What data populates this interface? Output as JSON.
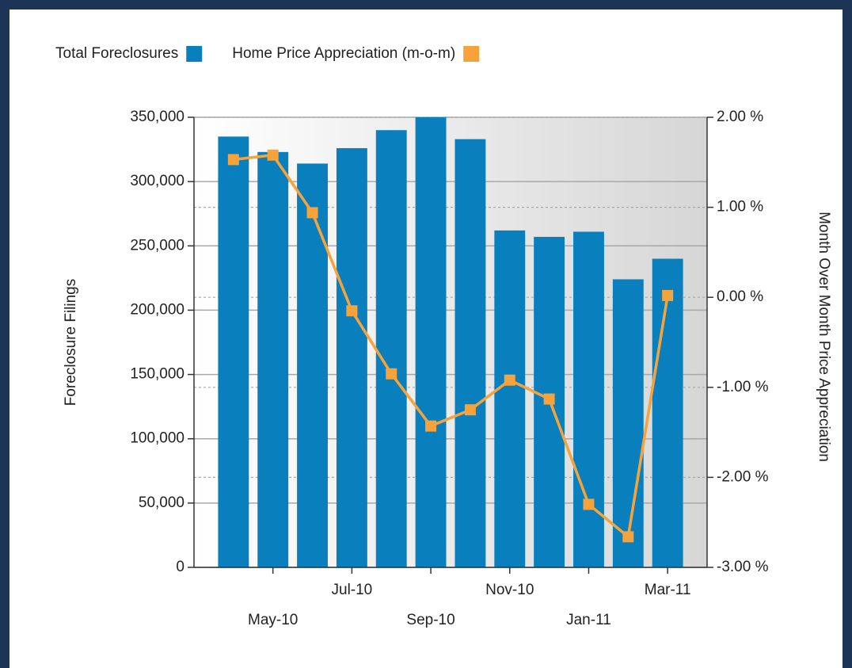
{
  "chart_data": {
    "type": "bar",
    "categories": [
      null,
      "May-10",
      null,
      "Jul-10",
      null,
      "Sep-10",
      null,
      "Nov-10",
      null,
      "Jan-11",
      null,
      "Mar-11"
    ],
    "series": [
      {
        "name": "Total Foreclosures",
        "type": "bar",
        "color": "#0a7fbd",
        "values": [
          335000,
          323000,
          314000,
          326000,
          340000,
          350000,
          333000,
          262000,
          257000,
          261000,
          224000,
          240000
        ]
      },
      {
        "name": "Home Price Appreciation (m-o-m)",
        "type": "line",
        "color": "#f5a33a",
        "axis": "y2",
        "values": [
          1.53,
          1.58,
          0.94,
          -0.15,
          -0.85,
          -1.43,
          -1.25,
          -0.92,
          -1.13,
          -2.3,
          -2.66,
          0.02
        ]
      }
    ],
    "ylabel": "Foreclosure Filings",
    "y2label": "Month Over Month Price Appreciation",
    "ylim": [
      0,
      350000
    ],
    "yticks": [
      0,
      {
        "value": 50000,
        "label": "50,000"
      },
      {
        "value": 100000,
        "label": "100,000"
      },
      {
        "value": 150000,
        "label": "150,000"
      },
      {
        "value": 200000,
        "label": "200,000"
      },
      {
        "value": 250000,
        "label": "250,000"
      },
      {
        "value": 300000,
        "label": "300,000"
      },
      {
        "value": 350000,
        "label": "350,000"
      }
    ],
    "y2lim": [
      -3,
      2
    ],
    "y2ticks": [
      {
        "value": -3,
        "label": "-3.00 %"
      },
      {
        "value": -2,
        "label": "-2.00 %"
      },
      {
        "value": -1,
        "label": "-1.00 %"
      },
      {
        "value": 0,
        "label": "0.00 %"
      },
      {
        "value": 1,
        "label": "1.00 %"
      },
      {
        "value": 2,
        "label": "2.00 %"
      }
    ],
    "grid": true,
    "legend": "top"
  }
}
